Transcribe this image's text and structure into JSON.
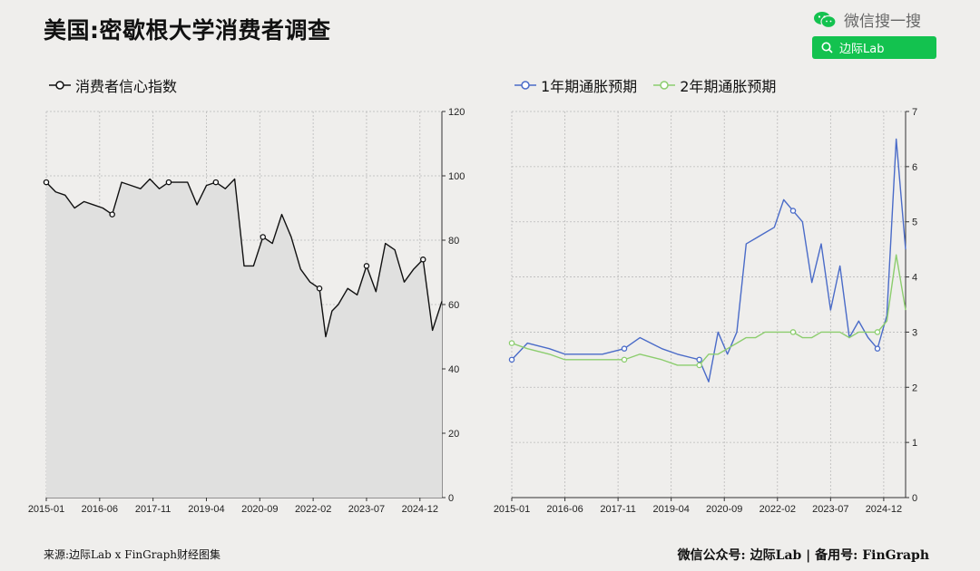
{
  "header": {
    "title": "美国:密歇根大学消费者调查",
    "wechat_label": "微信搜一搜",
    "search_label": "边际Lab"
  },
  "footer": {
    "source": "来源:边际Lab x FinGraph财经图集",
    "right": "微信公众号: 边际Lab  |  备用号: FinGraph"
  },
  "colors": {
    "sentiment": "#111111",
    "fill": "#e0e0df",
    "exp1y": "#4a6bc8",
    "exp2y": "#8ccd6e",
    "wechat": "#13c24f"
  },
  "chart_data": [
    {
      "type": "area",
      "series": [
        {
          "name": "消费者信心指数",
          "x": [
            "2015-01",
            "2015-04",
            "2015-07",
            "2015-10",
            "2016-01",
            "2016-04",
            "2016-07",
            "2016-10",
            "2017-01",
            "2017-04",
            "2017-07",
            "2017-10",
            "2018-01",
            "2018-04",
            "2018-07",
            "2018-10",
            "2019-01",
            "2019-04",
            "2019-07",
            "2019-10",
            "2020-01",
            "2020-04",
            "2020-07",
            "2020-10",
            "2021-01",
            "2021-04",
            "2021-07",
            "2021-10",
            "2022-01",
            "2022-04",
            "2022-06",
            "2022-08",
            "2022-10",
            "2023-01",
            "2023-04",
            "2023-07",
            "2023-10",
            "2024-01",
            "2024-04",
            "2024-07",
            "2024-10",
            "2025-01",
            "2025-04",
            "2025-07"
          ],
          "values": [
            98,
            95,
            94,
            90,
            92,
            91,
            90,
            88,
            98,
            97,
            96,
            99,
            96,
            98,
            98,
            98,
            91,
            97,
            98,
            96,
            99,
            72,
            72,
            81,
            79,
            88,
            81,
            71,
            67,
            65,
            50,
            58,
            60,
            65,
            63,
            72,
            64,
            79,
            77,
            67,
            71,
            74,
            52,
            61
          ]
        }
      ],
      "x_tick_labels": [
        "2015-01",
        "2016-06",
        "2017-11",
        "2019-04",
        "2020-09",
        "2022-02",
        "2023-07",
        "2024-12"
      ],
      "legend": [
        "消费者信心指数"
      ],
      "ylim": [
        0,
        120
      ],
      "yticks": [
        "0",
        "20",
        "40",
        "60",
        "80",
        "100",
        "120"
      ],
      "grid": true,
      "y_axis_side": "right"
    },
    {
      "type": "line",
      "series": [
        {
          "name": "1年期通胀预期",
          "x": [
            "2015-01",
            "2015-06",
            "2016-01",
            "2016-06",
            "2017-01",
            "2017-06",
            "2018-01",
            "2018-06",
            "2019-01",
            "2019-06",
            "2020-01",
            "2020-04",
            "2020-07",
            "2020-10",
            "2021-01",
            "2021-04",
            "2021-07",
            "2021-10",
            "2022-01",
            "2022-04",
            "2022-07",
            "2022-10",
            "2023-01",
            "2023-04",
            "2023-07",
            "2023-10",
            "2024-01",
            "2024-04",
            "2024-07",
            "2024-10",
            "2025-01",
            "2025-04",
            "2025-07"
          ],
          "values": [
            2.5,
            2.8,
            2.7,
            2.6,
            2.6,
            2.6,
            2.7,
            2.9,
            2.7,
            2.6,
            2.5,
            2.1,
            3.0,
            2.6,
            3.0,
            4.6,
            4.7,
            4.8,
            4.9,
            5.4,
            5.2,
            5.0,
            3.9,
            4.6,
            3.4,
            4.2,
            2.9,
            3.2,
            2.9,
            2.7,
            3.3,
            6.5,
            4.5
          ]
        },
        {
          "name": "2年期通胀预期",
          "x": [
            "2015-01",
            "2015-06",
            "2016-01",
            "2016-06",
            "2017-01",
            "2017-06",
            "2018-01",
            "2018-06",
            "2019-01",
            "2019-06",
            "2020-01",
            "2020-04",
            "2020-07",
            "2020-10",
            "2021-01",
            "2021-04",
            "2021-07",
            "2021-10",
            "2022-01",
            "2022-04",
            "2022-07",
            "2022-10",
            "2023-01",
            "2023-04",
            "2023-07",
            "2023-10",
            "2024-01",
            "2024-04",
            "2024-07",
            "2024-10",
            "2025-01",
            "2025-04",
            "2025-07"
          ],
          "values": [
            2.8,
            2.7,
            2.6,
            2.5,
            2.5,
            2.5,
            2.5,
            2.6,
            2.5,
            2.4,
            2.4,
            2.6,
            2.6,
            2.7,
            2.8,
            2.9,
            2.9,
            3.0,
            3.0,
            3.0,
            3.0,
            2.9,
            2.9,
            3.0,
            3.0,
            3.0,
            2.9,
            3.0,
            3.0,
            3.0,
            3.2,
            4.4,
            3.4
          ]
        }
      ],
      "x_tick_labels": [
        "2015-01",
        "2016-06",
        "2017-11",
        "2019-04",
        "2020-09",
        "2022-02",
        "2023-07",
        "2024-12"
      ],
      "legend": [
        "1年期通胀预期",
        "2年期通胀预期"
      ],
      "ylim": [
        0,
        7
      ],
      "yticks": [
        "0",
        "1",
        "2",
        "3",
        "4",
        "5",
        "6",
        "7"
      ],
      "grid": true,
      "y_axis_side": "right"
    }
  ]
}
